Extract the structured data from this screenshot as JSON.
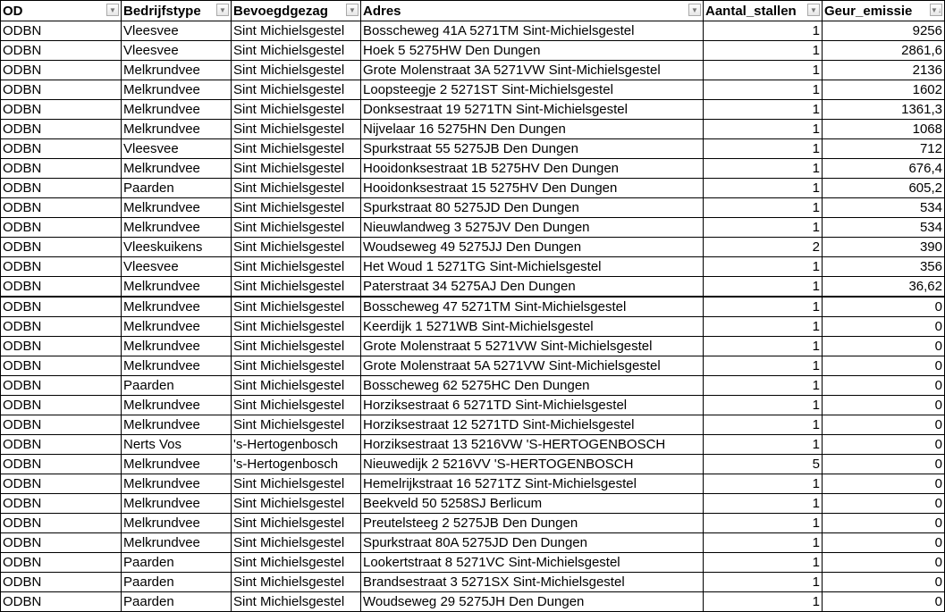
{
  "columns": [
    {
      "label": "OD",
      "filter_icon": "filter-dropdown-icon"
    },
    {
      "label": "Bedrijfstype",
      "filter_icon": "filter-dropdown-icon"
    },
    {
      "label": "Bevoegdgezag",
      "filter_icon": "filter-dropdown-icon"
    },
    {
      "label": "Adres",
      "filter_icon": "filter-dropdown-icon"
    },
    {
      "label": "Aantal_stallen",
      "filter_icon": "filter-dropdown-icon"
    },
    {
      "label": "Geur_emissie",
      "filter_icon": "sort-descending-filter-icon"
    }
  ],
  "rows": [
    [
      "ODBN",
      "Vleesvee",
      "Sint Michielsgestel",
      "Bosscheweg 41A 5271TM Sint-Michielsgestel",
      "1",
      "9256"
    ],
    [
      "ODBN",
      "Vleesvee",
      "Sint Michielsgestel",
      "Hoek 5 5275HW Den Dungen",
      "1",
      "2861,6"
    ],
    [
      "ODBN",
      "Melkrundvee",
      "Sint Michielsgestel",
      "Grote Molenstraat 3A 5271VW Sint-Michielsgestel",
      "1",
      "2136"
    ],
    [
      "ODBN",
      "Melkrundvee",
      "Sint Michielsgestel",
      "Loopsteegje 2 5271ST Sint-Michielsgestel",
      "1",
      "1602"
    ],
    [
      "ODBN",
      "Melkrundvee",
      "Sint Michielsgestel",
      "Donksestraat 19 5271TN Sint-Michielsgestel",
      "1",
      "1361,3"
    ],
    [
      "ODBN",
      "Melkrundvee",
      "Sint Michielsgestel",
      "Nijvelaar 16 5275HN Den Dungen",
      "1",
      "1068"
    ],
    [
      "ODBN",
      "Vleesvee",
      "Sint Michielsgestel",
      "Spurkstraat 55 5275JB Den Dungen",
      "1",
      "712"
    ],
    [
      "ODBN",
      "Melkrundvee",
      "Sint Michielsgestel",
      "Hooidonksestraat 1B 5275HV Den Dungen",
      "1",
      "676,4"
    ],
    [
      "ODBN",
      "Paarden",
      "Sint Michielsgestel",
      "Hooidonksestraat 15 5275HV Den Dungen",
      "1",
      "605,2"
    ],
    [
      "ODBN",
      "Melkrundvee",
      "Sint Michielsgestel",
      "Spurkstraat 80 5275JD Den Dungen",
      "1",
      "534"
    ],
    [
      "ODBN",
      "Melkrundvee",
      "Sint Michielsgestel",
      "Nieuwlandweg 3 5275JV Den Dungen",
      "1",
      "534"
    ],
    [
      "ODBN",
      "Vleeskuikens",
      "Sint Michielsgestel",
      "Woudseweg 49 5275JJ Den Dungen",
      "2",
      "390"
    ],
    [
      "ODBN",
      "Vleesvee",
      "Sint Michielsgestel",
      "Het Woud 1 5271TG Sint-Michielsgestel",
      "1",
      "356"
    ],
    [
      "ODBN",
      "Melkrundvee",
      "Sint Michielsgestel",
      "Paterstraat 34 5275AJ Den Dungen",
      "1",
      "36,62"
    ],
    [
      "ODBN",
      "Melkrundvee",
      "Sint Michielsgestel",
      "Bosscheweg 47 5271TM Sint-Michielsgestel",
      "1",
      "0"
    ],
    [
      "ODBN",
      "Melkrundvee",
      "Sint Michielsgestel",
      "Keerdijk 1 5271WB Sint-Michielsgestel",
      "1",
      "0"
    ],
    [
      "ODBN",
      "Melkrundvee",
      "Sint Michielsgestel",
      "Grote Molenstraat 5 5271VW Sint-Michielsgestel",
      "1",
      "0"
    ],
    [
      "ODBN",
      "Melkrundvee",
      "Sint Michielsgestel",
      "Grote Molenstraat 5A 5271VW Sint-Michielsgestel",
      "1",
      "0"
    ],
    [
      "ODBN",
      "Paarden",
      "Sint Michielsgestel",
      "Bosscheweg 62 5275HC Den Dungen",
      "1",
      "0"
    ],
    [
      "ODBN",
      "Melkrundvee",
      "Sint Michielsgestel",
      "Horziksestraat 6 5271TD Sint-Michielsgestel",
      "1",
      "0"
    ],
    [
      "ODBN",
      "Melkrundvee",
      "Sint Michielsgestel",
      "Horziksestraat 12 5271TD Sint-Michielsgestel",
      "1",
      "0"
    ],
    [
      "ODBN",
      "Nerts Vos",
      "'s-Hertogenbosch",
      "Horziksestraat 13 5216VW 'S-HERTOGENBOSCH",
      "1",
      "0"
    ],
    [
      "ODBN",
      "Melkrundvee",
      "'s-Hertogenbosch",
      "Nieuwedijk 2 5216VV 'S-HERTOGENBOSCH",
      "5",
      "0"
    ],
    [
      "ODBN",
      "Melkrundvee",
      "Sint Michielsgestel",
      "Hemelrijkstraat 16 5271TZ Sint-Michielsgestel",
      "1",
      "0"
    ],
    [
      "ODBN",
      "Melkrundvee",
      "Sint Michielsgestel",
      "Beekveld 50 5258SJ Berlicum",
      "1",
      "0"
    ],
    [
      "ODBN",
      "Melkrundvee",
      "Sint Michielsgestel",
      "Preutelsteeg 2 5275JB Den Dungen",
      "1",
      "0"
    ],
    [
      "ODBN",
      "Melkrundvee",
      "Sint Michielsgestel",
      "Spurkstraat 80A 5275JD Den Dungen",
      "1",
      "0"
    ],
    [
      "ODBN",
      "Paarden",
      "Sint Michielsgestel",
      "Lookertstraat 8 5271VC Sint-Michielsgestel",
      "1",
      "0"
    ],
    [
      "ODBN",
      "Paarden",
      "Sint Michielsgestel",
      "Brandsestraat 3 5271SX Sint-Michielsgestel",
      "1",
      "0"
    ],
    [
      "ODBN",
      "Paarden",
      "Sint Michielsgestel",
      "Woudseweg 29 5275JH Den Dungen",
      "1",
      "0"
    ]
  ]
}
